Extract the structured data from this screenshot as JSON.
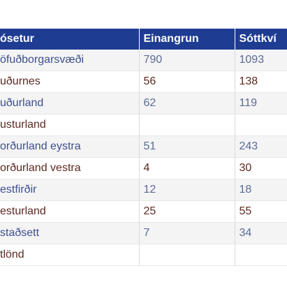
{
  "table": {
    "headers": [
      "ósetur",
      "Einangrun",
      "Sóttkví"
    ],
    "rows": [
      {
        "region": "öfuðborgarsvæði",
        "isolation": "790",
        "quarantine": "1093",
        "tone": "blue"
      },
      {
        "region": "uðurnes",
        "isolation": "56",
        "quarantine": "138",
        "tone": "dark"
      },
      {
        "region": "uðurland",
        "isolation": "62",
        "quarantine": "119",
        "tone": "blue"
      },
      {
        "region": "usturland",
        "isolation": "",
        "quarantine": "",
        "tone": "dark"
      },
      {
        "region": "orðurland eystra",
        "isolation": "51",
        "quarantine": "243",
        "tone": "blue"
      },
      {
        "region": "orðurland vestra",
        "isolation": "4",
        "quarantine": "30",
        "tone": "dark"
      },
      {
        "region": "estfirðir",
        "isolation": "12",
        "quarantine": "18",
        "tone": "blue"
      },
      {
        "region": "esturland",
        "isolation": "25",
        "quarantine": "55",
        "tone": "dark"
      },
      {
        "region": "staðsett",
        "isolation": "7",
        "quarantine": "34",
        "tone": "blue"
      },
      {
        "region": "tlönd",
        "isolation": "",
        "quarantine": "",
        "tone": "dark"
      }
    ]
  },
  "colors": {
    "header_bg": "#1f3c93",
    "header_text": "#ffffff",
    "text_dark": "#5c2a22",
    "text_blue": "#4e5f8a",
    "row_alt": "#f4f4f5"
  }
}
